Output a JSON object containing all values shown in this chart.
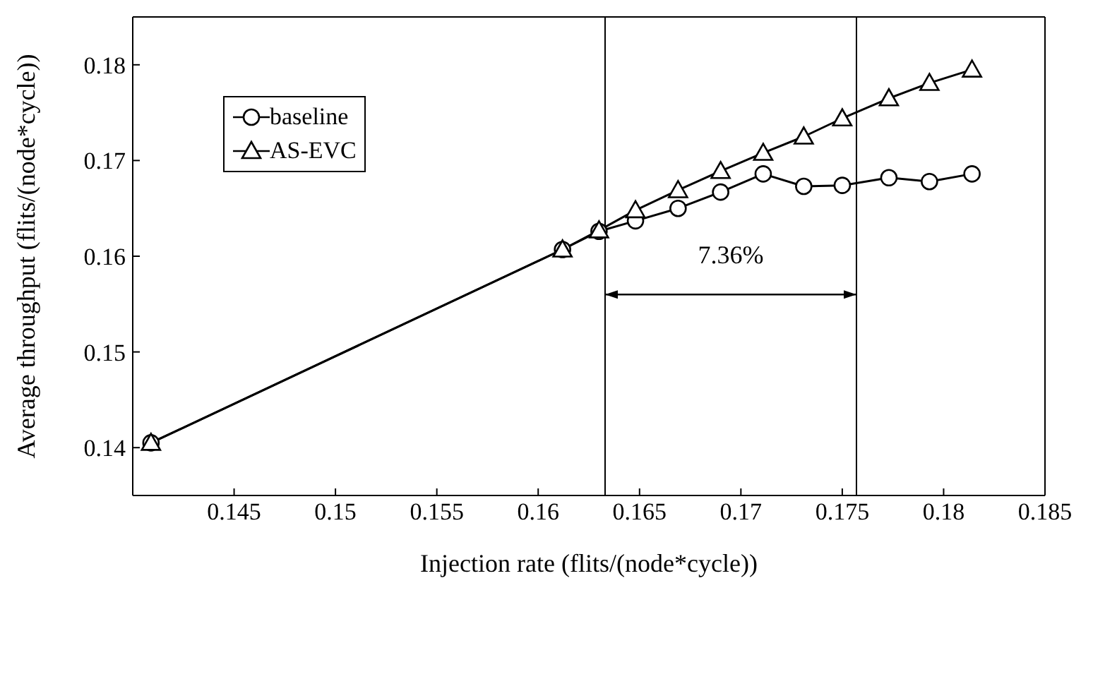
{
  "chart_data": {
    "type": "line",
    "xlabel": "Injection rate (flits/(node*cycle))",
    "ylabel": "Average throughput (flits/(node*cycle))",
    "xlim": [
      0.14,
      0.185
    ],
    "xticks": [
      0.145,
      0.15,
      0.155,
      0.16,
      0.165,
      0.17,
      0.175,
      0.18,
      0.185
    ],
    "ylim": [
      0.135,
      0.185
    ],
    "yticks": [
      0.14,
      0.15,
      0.16,
      0.17,
      0.18
    ],
    "legend": "top left",
    "series": [
      {
        "name": "baseline",
        "color": "#000000",
        "marker": "circle",
        "x": [
          0.1409,
          0.1612,
          0.163,
          0.1648,
          0.1669,
          0.169,
          0.1711,
          0.1731,
          0.175,
          0.1773,
          0.1793,
          0.1814
        ],
        "values": [
          0.1405,
          0.1607,
          0.1626,
          0.1637,
          0.165,
          0.1667,
          0.1686,
          0.1673,
          0.1674,
          0.1682,
          0.1678,
          0.1686
        ]
      },
      {
        "name": "AS-EVC",
        "color": "#000000",
        "marker": "triangle",
        "x": [
          0.1409,
          0.1612,
          0.163,
          0.1648,
          0.1669,
          0.169,
          0.1711,
          0.1731,
          0.175,
          0.1773,
          0.1793,
          0.1814
        ],
        "values": [
          0.1405,
          0.1607,
          0.1627,
          0.1648,
          0.1669,
          0.1689,
          0.1708,
          0.1725,
          0.1744,
          0.1765,
          0.1781,
          0.1795
        ]
      }
    ],
    "ref_lines": [
      {
        "axis": "x",
        "value": 0.1633,
        "color": "#000000"
      },
      {
        "axis": "x",
        "value": 0.1757,
        "color": "#000000"
      }
    ],
    "annotations": [
      "7.36%"
    ]
  }
}
